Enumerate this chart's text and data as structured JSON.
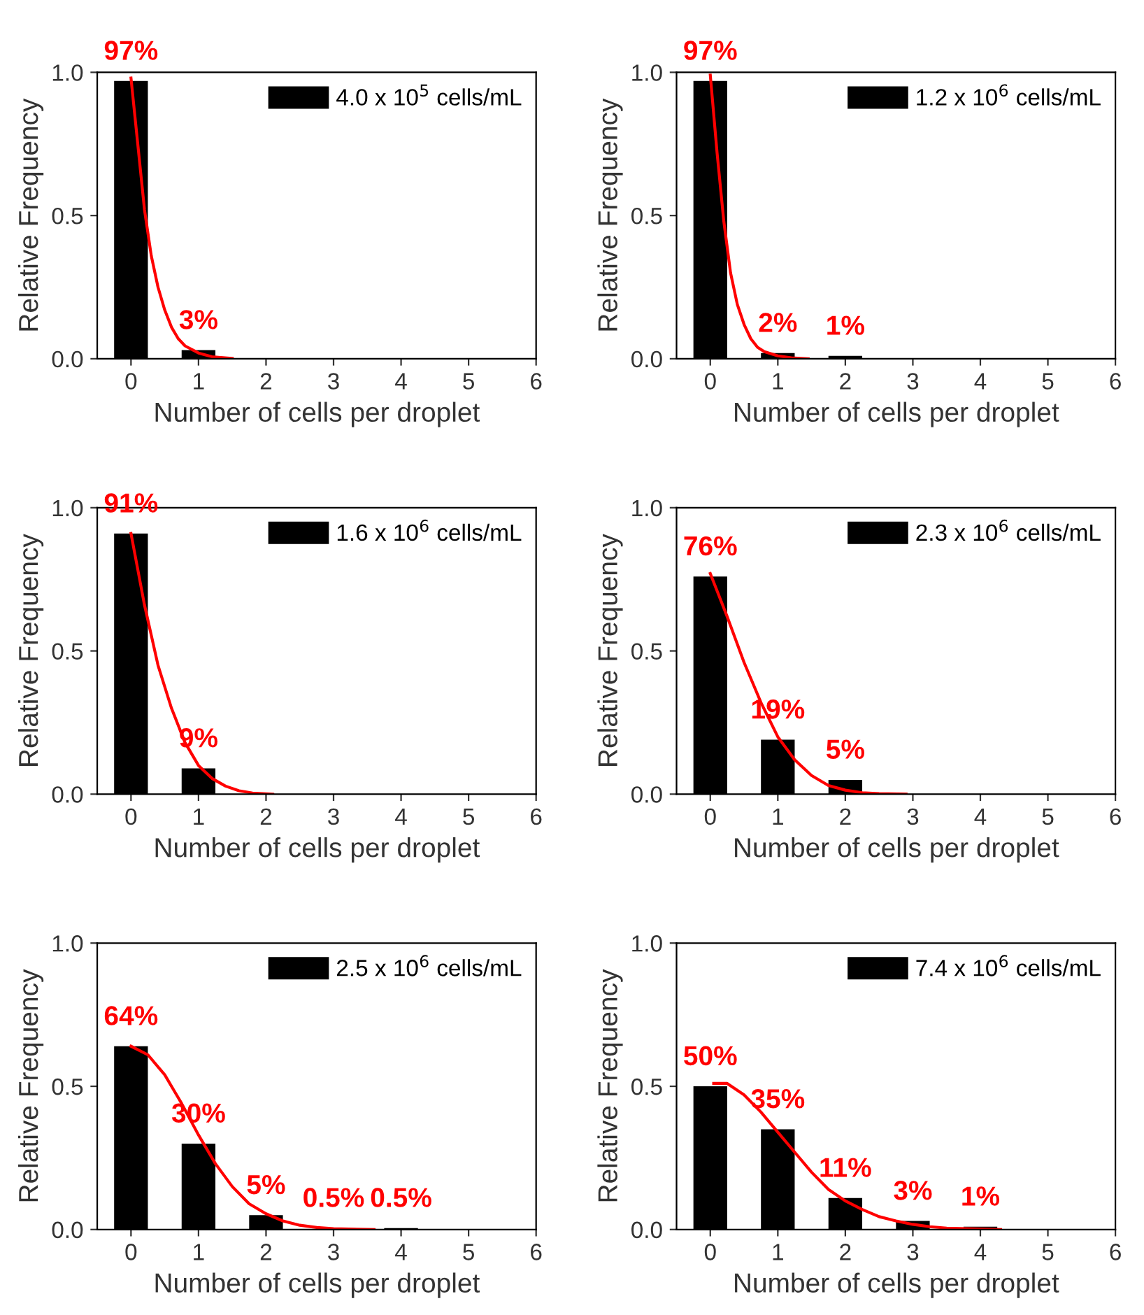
{
  "chart_data": [
    {
      "type": "bar",
      "xlabel": "Number of cells per droplet",
      "ylabel": "Relative Frequency",
      "xlim": [
        -0.5,
        6
      ],
      "xticks": [
        0,
        1,
        2,
        3,
        4,
        5,
        6
      ],
      "ylim": [
        0,
        1
      ],
      "yticks": [
        {
          "value": 0,
          "label": "0.0"
        },
        {
          "value": 0.5,
          "label": "0.5"
        },
        {
          "value": 1,
          "label": "1.0"
        }
      ],
      "legend": "top right",
      "series": [
        {
          "name": "4.0 x 10$^{5}$ cells/mL",
          "color": "#000000",
          "x": [
            0,
            1
          ],
          "values": [
            0.97,
            0.03
          ],
          "value_labels": [
            "97%",
            "3%"
          ]
        },
        {
          "type": "line",
          "color": "#ff0000",
          "x": [
            0,
            0.1,
            0.2,
            0.3,
            0.4,
            0.5,
            0.6,
            0.7,
            0.8,
            1.0,
            1.2,
            1.5
          ],
          "values": [
            0.98,
            0.75,
            0.52,
            0.36,
            0.25,
            0.17,
            0.11,
            0.07,
            0.045,
            0.02,
            0.007,
            0.001
          ]
        }
      ]
    },
    {
      "type": "bar",
      "xlabel": "Number of cells per droplet",
      "ylabel": "Relative Frequency",
      "xlim": [
        -0.5,
        6
      ],
      "xticks": [
        0,
        1,
        2,
        3,
        4,
        5,
        6
      ],
      "ylim": [
        0,
        1
      ],
      "yticks": [
        {
          "value": 0,
          "label": "0.0"
        },
        {
          "value": 0.5,
          "label": "0.5"
        },
        {
          "value": 1,
          "label": "1.0"
        }
      ],
      "legend": "top right",
      "series": [
        {
          "name": "1.2 x 10$^{6}$ cells/mL",
          "color": "#000000",
          "x": [
            0,
            1,
            2
          ],
          "values": [
            0.97,
            0.02,
            0.01
          ],
          "value_labels": [
            "97%",
            "2%",
            "1%"
          ]
        },
        {
          "type": "line",
          "color": "#ff0000",
          "x": [
            0,
            0.1,
            0.2,
            0.3,
            0.4,
            0.5,
            0.6,
            0.7,
            0.8,
            1.0,
            1.2,
            1.45
          ],
          "values": [
            0.99,
            0.72,
            0.48,
            0.3,
            0.19,
            0.12,
            0.07,
            0.04,
            0.025,
            0.01,
            0.003,
            0.0
          ]
        }
      ]
    },
    {
      "type": "bar",
      "xlabel": "Number of cells per droplet",
      "ylabel": "Relative Frequency",
      "xlim": [
        -0.5,
        6
      ],
      "xticks": [
        0,
        1,
        2,
        3,
        4,
        5,
        6
      ],
      "ylim": [
        0,
        1
      ],
      "yticks": [
        {
          "value": 0,
          "label": "0.0"
        },
        {
          "value": 0.5,
          "label": "0.5"
        },
        {
          "value": 1,
          "label": "1.0"
        }
      ],
      "legend": "top right",
      "series": [
        {
          "name": "1.6 x 10$^{6}$ cells/mL",
          "color": "#000000",
          "x": [
            0,
            1
          ],
          "values": [
            0.91,
            0.09
          ],
          "value_labels": [
            "91%",
            "9%"
          ]
        },
        {
          "type": "line",
          "color": "#ff0000",
          "x": [
            0,
            0.2,
            0.4,
            0.6,
            0.8,
            1.0,
            1.2,
            1.4,
            1.6,
            1.8,
            2.1
          ],
          "values": [
            0.91,
            0.66,
            0.45,
            0.3,
            0.18,
            0.1,
            0.055,
            0.028,
            0.012,
            0.004,
            0.0
          ]
        }
      ]
    },
    {
      "type": "bar",
      "xlabel": "Number of cells per droplet",
      "ylabel": "Relative Frequency",
      "xlim": [
        -0.5,
        6
      ],
      "xticks": [
        0,
        1,
        2,
        3,
        4,
        5,
        6
      ],
      "ylim": [
        0,
        1
      ],
      "yticks": [
        {
          "value": 0,
          "label": "0.0"
        },
        {
          "value": 0.5,
          "label": "0.5"
        },
        {
          "value": 1,
          "label": "1.0"
        }
      ],
      "legend": "top right",
      "series": [
        {
          "name": "2.3 x 10$^{6}$ cells/mL",
          "color": "#000000",
          "x": [
            0,
            1,
            2
          ],
          "values": [
            0.76,
            0.19,
            0.05
          ],
          "value_labels": [
            "76%",
            "19%",
            "5%"
          ]
        },
        {
          "type": "line",
          "color": "#ff0000",
          "x": [
            0,
            0.25,
            0.5,
            0.75,
            1.0,
            1.25,
            1.5,
            1.75,
            2.0,
            2.25,
            2.5,
            2.9
          ],
          "values": [
            0.77,
            0.62,
            0.46,
            0.32,
            0.2,
            0.12,
            0.065,
            0.03,
            0.014,
            0.005,
            0.002,
            0.0
          ]
        }
      ]
    },
    {
      "type": "bar",
      "xlabel": "Number of cells per droplet",
      "ylabel": "Relative Frequency",
      "xlim": [
        -0.5,
        6
      ],
      "xticks": [
        0,
        1,
        2,
        3,
        4,
        5,
        6
      ],
      "ylim": [
        0,
        1
      ],
      "yticks": [
        {
          "value": 0,
          "label": "0.0"
        },
        {
          "value": 0.5,
          "label": "0.5"
        },
        {
          "value": 1,
          "label": "1.0"
        }
      ],
      "legend": "top right",
      "series": [
        {
          "name": "2.5 x 10$^{6}$ cells/mL",
          "color": "#000000",
          "x": [
            0,
            1,
            2,
            3,
            4
          ],
          "values": [
            0.64,
            0.3,
            0.05,
            0.005,
            0.005
          ],
          "value_labels": [
            "64%",
            "30%",
            "5%",
            "0.5%",
            "0.5%"
          ]
        },
        {
          "type": "line",
          "color": "#ff0000",
          "x": [
            0,
            0.25,
            0.5,
            0.75,
            1.0,
            1.25,
            1.5,
            1.75,
            2.0,
            2.25,
            2.5,
            2.75,
            3.0,
            3.6
          ],
          "values": [
            0.64,
            0.61,
            0.54,
            0.44,
            0.33,
            0.23,
            0.15,
            0.09,
            0.055,
            0.03,
            0.015,
            0.007,
            0.003,
            0.0
          ]
        }
      ]
    },
    {
      "type": "bar",
      "xlabel": "Number of cells per droplet",
      "ylabel": "Relative Frequency",
      "xlim": [
        -0.5,
        6
      ],
      "xticks": [
        0,
        1,
        2,
        3,
        4,
        5,
        6
      ],
      "ylim": [
        0,
        1
      ],
      "yticks": [
        {
          "value": 0,
          "label": "0.0"
        },
        {
          "value": 0.5,
          "label": "0.5"
        },
        {
          "value": 1,
          "label": "1.0"
        }
      ],
      "legend": "top right",
      "series": [
        {
          "name": "7.4 x 10$^{6}$ cells/mL",
          "color": "#000000",
          "x": [
            0,
            1,
            2,
            3,
            4
          ],
          "values": [
            0.5,
            0.35,
            0.11,
            0.03,
            0.01
          ],
          "value_labels": [
            "50%",
            "35%",
            "11%",
            "3%",
            "1%"
          ]
        },
        {
          "type": "line",
          "color": "#ff0000",
          "x": [
            0.05,
            0.25,
            0.5,
            0.75,
            1.0,
            1.25,
            1.5,
            1.75,
            2.0,
            2.25,
            2.5,
            2.75,
            3.0,
            3.25,
            3.5,
            4.3
          ],
          "values": [
            0.51,
            0.51,
            0.47,
            0.41,
            0.34,
            0.27,
            0.2,
            0.14,
            0.1,
            0.07,
            0.045,
            0.03,
            0.018,
            0.01,
            0.005,
            0.0
          ]
        }
      ]
    }
  ]
}
